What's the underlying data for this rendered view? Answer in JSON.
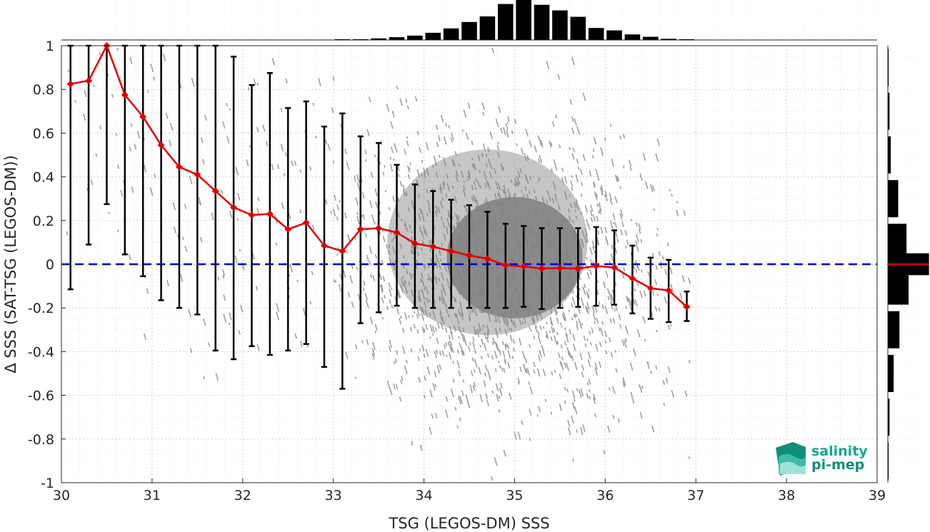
{
  "chart_data": {
    "type": "scatter",
    "xlabel": "TSG (LEGOS-DM) SSS",
    "ylabel": "Δ SSS (SAT-TSG (LEGOS-DM))",
    "xlim": [
      30,
      39
    ],
    "ylim": [
      -1,
      1
    ],
    "x_ticks": [
      "30",
      "31",
      "32",
      "33",
      "34",
      "35",
      "36",
      "37",
      "38",
      "39"
    ],
    "y_ticks": [
      "-1",
      "-0.8",
      "-0.6",
      "-0.4",
      "-0.2",
      "0",
      "0.2",
      "0.4",
      "0.6",
      "0.8",
      "1"
    ],
    "grid": true,
    "reference_line": {
      "y": 0,
      "color": "#0000e0",
      "style": "dashed"
    },
    "scatter_color": "#808080",
    "mean_series": {
      "color": "#e00000",
      "x": [
        30.1,
        30.3,
        30.5,
        30.7,
        30.9,
        31.1,
        31.3,
        31.5,
        31.7,
        31.9,
        32.1,
        32.3,
        32.5,
        32.7,
        32.9,
        33.1,
        33.3,
        33.5,
        33.7,
        33.9,
        34.1,
        34.3,
        34.5,
        34.7,
        34.9,
        35.1,
        35.3,
        35.5,
        35.7,
        35.9,
        36.1,
        36.3,
        36.5,
        36.7,
        36.9
      ],
      "y": [
        0.825,
        0.84,
        1.0,
        0.775,
        0.675,
        0.545,
        0.445,
        0.41,
        0.335,
        0.26,
        0.225,
        0.23,
        0.16,
        0.19,
        0.085,
        0.06,
        0.16,
        0.165,
        0.145,
        0.095,
        0.08,
        0.06,
        0.04,
        0.025,
        -0.005,
        -0.01,
        -0.02,
        -0.018,
        -0.02,
        -0.008,
        -0.015,
        -0.065,
        -0.11,
        -0.12,
        -0.195
      ]
    },
    "error_bars": {
      "color": "#000000",
      "upper": [
        1.0,
        1.0,
        1.0,
        1.0,
        1.0,
        1.0,
        1.0,
        1.0,
        1.0,
        0.95,
        0.82,
        0.875,
        0.715,
        0.745,
        0.63,
        0.69,
        0.585,
        0.555,
        0.455,
        0.365,
        0.335,
        0.295,
        0.27,
        0.24,
        0.185,
        0.175,
        0.165,
        0.165,
        0.165,
        0.17,
        0.155,
        0.085,
        0.03,
        0.02,
        -0.125
      ],
      "lower": [
        -0.115,
        0.09,
        0.275,
        0.045,
        -0.055,
        -0.165,
        -0.2,
        -0.23,
        -0.395,
        -0.435,
        -0.375,
        -0.415,
        -0.395,
        -0.365,
        -0.47,
        -0.57,
        -0.27,
        -0.22,
        -0.19,
        -0.2,
        -0.2,
        -0.2,
        -0.2,
        -0.2,
        -0.2,
        -0.195,
        -0.205,
        -0.2,
        -0.195,
        -0.19,
        -0.185,
        -0.225,
        -0.25,
        -0.265,
        -0.26
      ]
    },
    "top_histogram": {
      "x": [
        30.1,
        30.3,
        30.5,
        30.7,
        30.9,
        31.1,
        31.3,
        31.5,
        31.7,
        31.9,
        32.1,
        32.3,
        32.5,
        32.7,
        32.9,
        33.1,
        33.3,
        33.5,
        33.7,
        33.9,
        34.1,
        34.3,
        34.5,
        34.7,
        34.9,
        35.1,
        35.3,
        35.5,
        35.7,
        35.9,
        36.1,
        36.3,
        36.5,
        36.7,
        36.9
      ],
      "relative_counts": [
        0.01,
        0.01,
        0.01,
        0.01,
        0.01,
        0.01,
        0.01,
        0.01,
        0.01,
        0.01,
        0.01,
        0.01,
        0.01,
        0.01,
        0.01,
        0.02,
        0.02,
        0.04,
        0.07,
        0.11,
        0.18,
        0.29,
        0.45,
        0.59,
        0.9,
        1.0,
        0.88,
        0.74,
        0.58,
        0.3,
        0.24,
        0.14,
        0.08,
        0.03,
        0.02
      ]
    },
    "right_histogram": {
      "y": [
        0.9,
        0.7,
        0.5,
        0.3,
        0.1,
        0.0,
        -0.1,
        -0.3,
        -0.5,
        -0.7,
        -0.9
      ],
      "relative_counts": [
        0.02,
        0.04,
        0.07,
        0.25,
        0.45,
        0.8,
        0.5,
        0.28,
        0.14,
        0.04,
        0.02
      ],
      "center_line_color": "#e00000"
    }
  },
  "logo": {
    "line1": "salinity",
    "line2": "pi-mep",
    "color": "#12a68f"
  }
}
